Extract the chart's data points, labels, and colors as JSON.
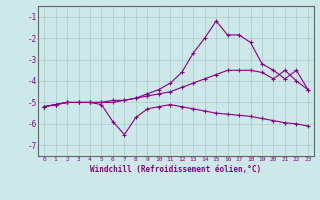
{
  "xlabel": "Windchill (Refroidissement éolien,°C)",
  "background_color": "#cce8e8",
  "grid_color": "#aacccc",
  "line_color": "#880088",
  "xlim": [
    -0.5,
    23.5
  ],
  "ylim": [
    -7.5,
    -0.5
  ],
  "yticks": [
    -7,
    -6,
    -5,
    -4,
    -3,
    -2,
    -1
  ],
  "xticks": [
    0,
    1,
    2,
    3,
    4,
    5,
    6,
    7,
    8,
    9,
    10,
    11,
    12,
    13,
    14,
    15,
    16,
    17,
    18,
    19,
    20,
    21,
    22,
    23
  ],
  "series1_x": [
    0,
    1,
    2,
    3,
    4,
    5,
    6,
    7,
    8,
    9,
    10,
    11,
    12,
    13,
    14,
    15,
    16,
    17,
    18,
    19,
    20,
    21,
    22,
    23
  ],
  "series1_y": [
    -5.2,
    -5.1,
    -5.0,
    -5.0,
    -5.0,
    -5.0,
    -4.9,
    -4.9,
    -4.8,
    -4.7,
    -4.6,
    -4.5,
    -4.3,
    -4.1,
    -3.9,
    -3.7,
    -3.5,
    -3.5,
    -3.5,
    -3.6,
    -3.9,
    -3.5,
    -4.0,
    -4.4
  ],
  "series2_x": [
    0,
    1,
    2,
    3,
    4,
    5,
    6,
    7,
    8,
    9,
    10,
    11,
    12,
    13,
    14,
    15,
    16,
    17,
    18,
    19,
    20,
    21,
    22,
    23
  ],
  "series2_y": [
    -5.2,
    -5.1,
    -5.0,
    -5.0,
    -5.0,
    -5.0,
    -5.0,
    -4.9,
    -4.8,
    -4.6,
    -4.4,
    -4.1,
    -3.6,
    -2.7,
    -2.0,
    -1.2,
    -1.85,
    -1.85,
    -2.2,
    -3.2,
    -3.5,
    -3.9,
    -3.5,
    -4.4
  ],
  "series3_x": [
    0,
    1,
    2,
    3,
    4,
    5,
    6,
    7,
    8,
    9,
    10,
    11,
    12,
    13,
    14,
    15,
    16,
    17,
    18,
    19,
    20,
    21,
    22,
    23
  ],
  "series3_y": [
    -5.2,
    -5.1,
    -5.0,
    -5.0,
    -5.0,
    -5.1,
    -5.9,
    -6.5,
    -5.7,
    -5.3,
    -5.2,
    -5.1,
    -5.2,
    -5.3,
    -5.4,
    -5.5,
    -5.55,
    -5.6,
    -5.65,
    -5.75,
    -5.85,
    -5.95,
    -6.0,
    -6.1
  ]
}
